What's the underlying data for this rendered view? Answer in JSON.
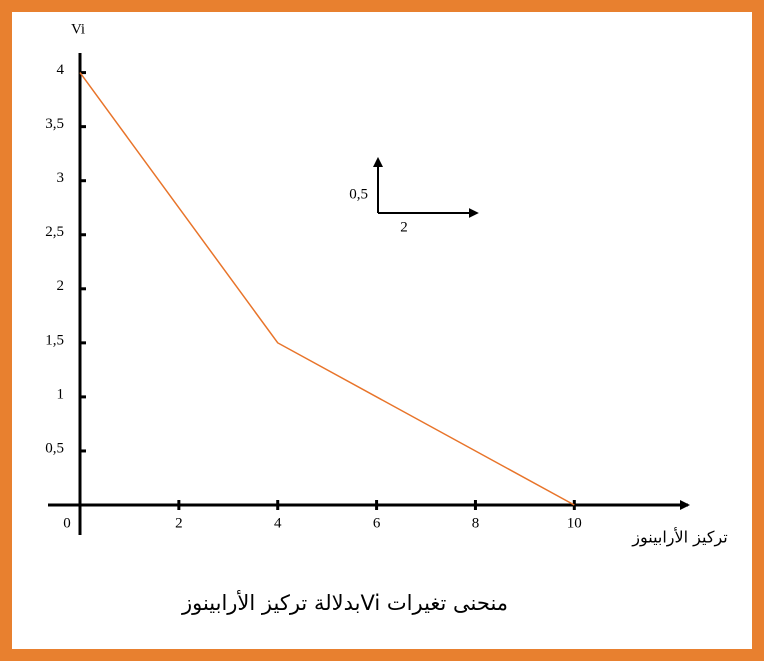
{
  "chart_data": {
    "type": "line",
    "title": "منحنى تغيرات Viبدلالة تركيز الأرابينوز",
    "x_label": "تركيز الأرابينوز",
    "y_label": "Vi",
    "x": [
      0,
      4,
      10
    ],
    "values": [
      4,
      1.5,
      0
    ],
    "color": "#e8742a",
    "xlim": [
      0,
      12.3
    ],
    "ylim": [
      0,
      4.32
    ],
    "xticks": [
      0,
      2,
      4,
      6,
      8,
      10
    ],
    "yticks": [
      {
        "value": 0.5,
        "label": "0,5"
      },
      1,
      {
        "value": 1.5,
        "label": "1,5"
      },
      2,
      {
        "value": 2.5,
        "label": "2,5"
      },
      3,
      {
        "value": 3.5,
        "label": "3,5"
      },
      4
    ],
    "scale_indicator": {
      "y": {
        "value": 0.5,
        "label": "0,5"
      },
      "x": 2
    }
  }
}
